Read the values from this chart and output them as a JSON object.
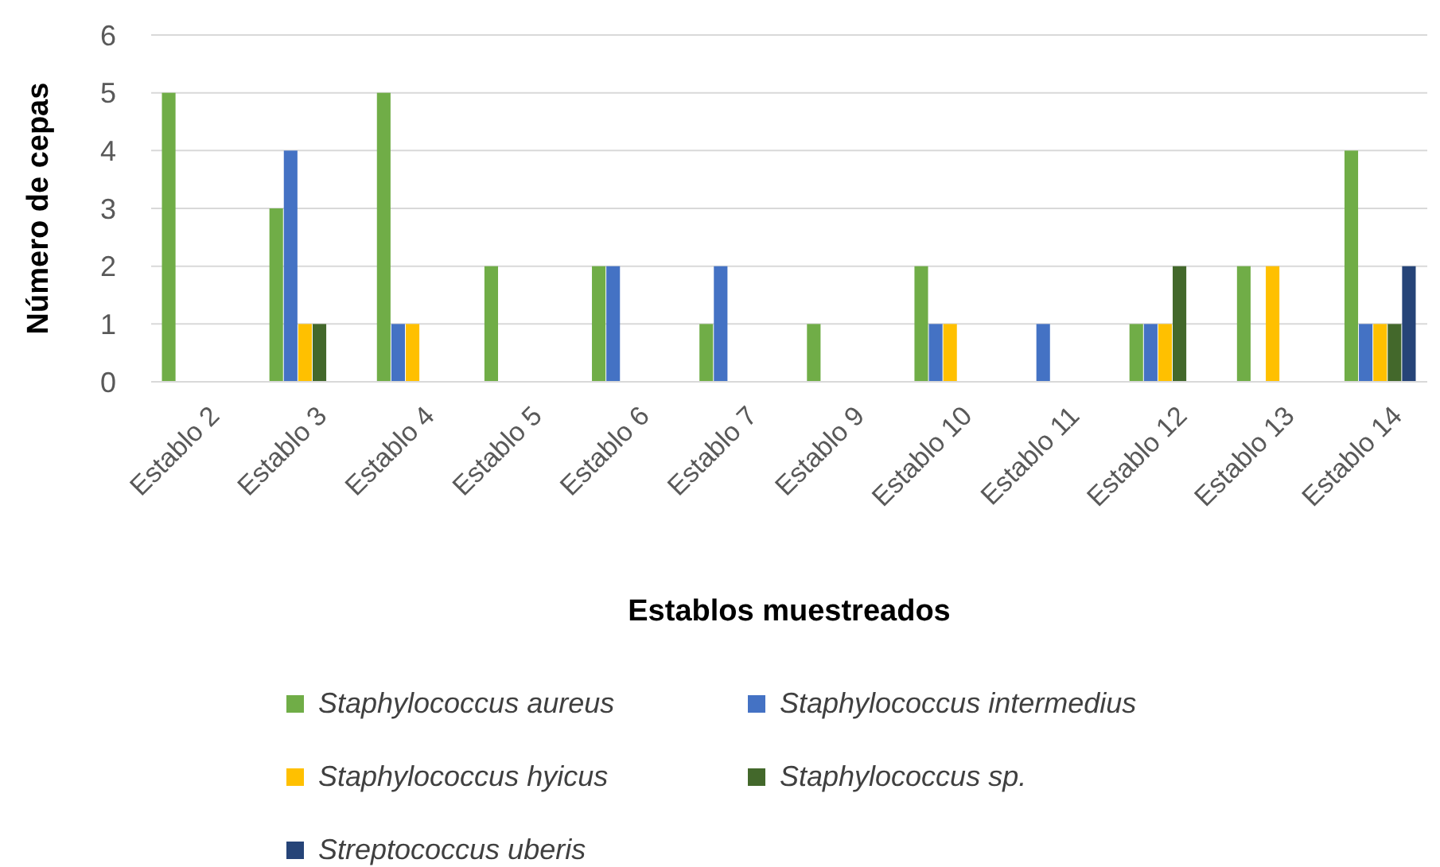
{
  "chart_data": {
    "type": "bar",
    "xlabel": "Establos muestreados",
    "ylabel": "Número de cepas",
    "categories": [
      "Establo 2",
      "Establo 3",
      "Establo 4",
      "Establo 5",
      "Establo 6",
      "Establo 7",
      "Establo 9",
      "Establo 10",
      "Establo 11",
      "Establo 12",
      "Establo 13",
      "Establo 14"
    ],
    "series": [
      {
        "name": "Staphylococcus aureus",
        "color": "#70ad47",
        "values": [
          5,
          3,
          5,
          2,
          2,
          1,
          1,
          2,
          0,
          1,
          2,
          4
        ]
      },
      {
        "name": "Staphylococcus intermedius",
        "color": "#4472c4",
        "values": [
          0,
          4,
          1,
          0,
          2,
          2,
          0,
          1,
          1,
          1,
          0,
          1
        ]
      },
      {
        "name": "Staphylococcus hyicus",
        "color": "#ffc000",
        "values": [
          0,
          1,
          1,
          0,
          0,
          0,
          0,
          1,
          0,
          1,
          2,
          1
        ]
      },
      {
        "name": "Staphylococcus sp.",
        "color": "#43682b",
        "values": [
          0,
          1,
          0,
          0,
          0,
          0,
          0,
          0,
          0,
          2,
          0,
          1
        ]
      },
      {
        "name": "Streptococcus uberis",
        "color": "#264478",
        "values": [
          0,
          0,
          0,
          0,
          0,
          0,
          0,
          0,
          0,
          0,
          0,
          2
        ]
      }
    ],
    "ylim": [
      0,
      6
    ],
    "yticks": [
      0,
      1,
      2,
      3,
      4,
      5,
      6
    ],
    "grid": "y",
    "legend": "bottom"
  }
}
